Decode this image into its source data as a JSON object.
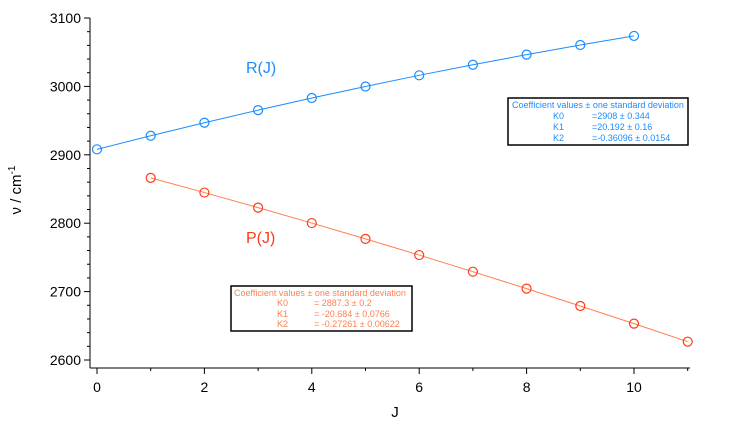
{
  "chart_data": {
    "type": "scatter",
    "xlabel": "J",
    "ylabel": "ν / cm",
    "ylabel_superscript": "-1",
    "xlim": [
      -0.2,
      11.1
    ],
    "ylim": [
      2590,
      3100
    ],
    "xticks": [
      0,
      2,
      4,
      6,
      8,
      10
    ],
    "yticks": [
      2600,
      2700,
      2800,
      2900,
      3000,
      3100
    ],
    "grid": false,
    "series": [
      {
        "name": "R(J)",
        "color": "#1a8cff",
        "marker": "open-circle",
        "fit_line": true,
        "x": [
          0,
          1,
          2,
          3,
          4,
          5,
          6,
          7,
          8,
          9,
          10
        ],
        "y": [
          2908.0,
          2927.8,
          2946.9,
          2965.3,
          2983.0,
          2999.9,
          3016.2,
          3031.7,
          3046.4,
          3060.5,
          3073.8
        ],
        "fit_box": {
          "header": "Coefficient values ± one standard deviation",
          "rows": [
            {
              "name": "K0",
              "value": "=2908 ± 0.344"
            },
            {
              "name": "K1",
              "value": "=20.192 ± 0.16"
            },
            {
              "name": "K2",
              "value": "=-0.36096 ± 0.0154"
            }
          ]
        }
      },
      {
        "name": "P(J)",
        "color": "#ff3b1a",
        "line_color": "#ff7f50",
        "marker": "open-circle",
        "fit_line": true,
        "x": [
          1,
          2,
          3,
          4,
          5,
          6,
          7,
          8,
          9,
          10,
          11
        ],
        "y": [
          2866.3,
          2844.8,
          2822.8,
          2800.2,
          2777.1,
          2753.4,
          2729.1,
          2704.4,
          2678.9,
          2653.2,
          2626.8
        ],
        "fit_box": {
          "header": "Coefficient values ± one standard deviation",
          "rows": [
            {
              "name": "K0",
              "value": "= 2887.3 ± 0.2"
            },
            {
              "name": "K1",
              "value": "= -20.684 ± 0.0766"
            },
            {
              "name": "K2",
              "value": "= -0.27261 ± 0.00622"
            }
          ]
        }
      }
    ]
  }
}
